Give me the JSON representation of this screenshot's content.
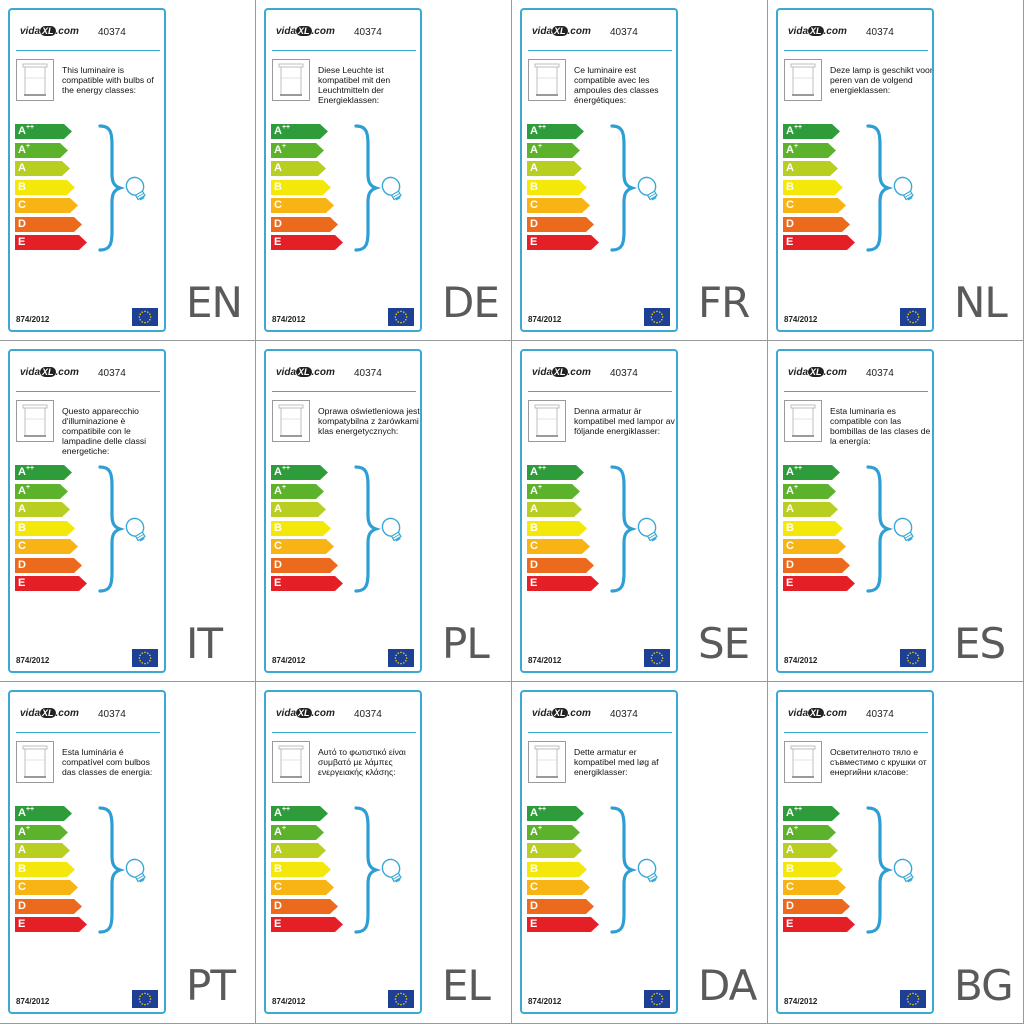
{
  "brand": "vidaXL.com",
  "brand_prefix": "vida",
  "brand_xl": "XL",
  "brand_suffix": ".com",
  "product_code": "40374",
  "regulation": "874/2012",
  "icons": {
    "lamp": "ceiling-lamp-icon",
    "bulb": "light-bulb-icon",
    "flag": "eu-flag-icon"
  },
  "colors": {
    "frame": "#3aa9d6",
    "bracket": "#2e9fd6",
    "class_colors": [
      "#2e9c3a",
      "#5cb32b",
      "#b8cf22",
      "#f4e80a",
      "#f7b414",
      "#ec6a1e",
      "#e41f26"
    ]
  },
  "energy_classes": [
    {
      "letter": "A",
      "sup": "++"
    },
    {
      "letter": "A",
      "sup": "+"
    },
    {
      "letter": "A",
      "sup": ""
    },
    {
      "letter": "B",
      "sup": ""
    },
    {
      "letter": "C",
      "sup": ""
    },
    {
      "letter": "D",
      "sup": ""
    },
    {
      "letter": "E",
      "sup": ""
    }
  ],
  "panels": [
    {
      "lang": "EN",
      "text": "This luminaire is compatible with bulbs of the energy classes:"
    },
    {
      "lang": "DE",
      "text": "Diese Leuchte ist kompatibel mit den Leuchtmitteln der Energieklassen:"
    },
    {
      "lang": "FR",
      "text": "Ce luminaire est compatible avec les ampoules des classes énergétiques:"
    },
    {
      "lang": "NL",
      "text": "Deze lamp is geschikt voor peren van de volgend energieklassen:"
    },
    {
      "lang": "IT",
      "text": "Questo apparecchio d'illuminazione è compatibile con le lampadine delle classi energetiche:"
    },
    {
      "lang": "PL",
      "text": "Oprawa oświetleniowa jest kompatybilna z żarówkami klas energetycznych:"
    },
    {
      "lang": "SE",
      "text": "Denna armatur är kompatibel med lampor av följande energiklasser:"
    },
    {
      "lang": "ES",
      "text": "Esta luminaria es compatible con las bombillas de las clases de la energía:"
    },
    {
      "lang": "PT",
      "text": "Esta luminária é compatível com bulbos das classes de energia:"
    },
    {
      "lang": "EL",
      "text": "Αυτό το φωτιστικό είναι συμβατό με λάμπες ενεργειακής κλάσης:"
    },
    {
      "lang": "DA",
      "text": "Dette armatur er kompatibel med løg af energiklasser:"
    },
    {
      "lang": "BG",
      "text": "Осветителното тяло е съвместимо с крушки от енергийни класове:"
    }
  ]
}
